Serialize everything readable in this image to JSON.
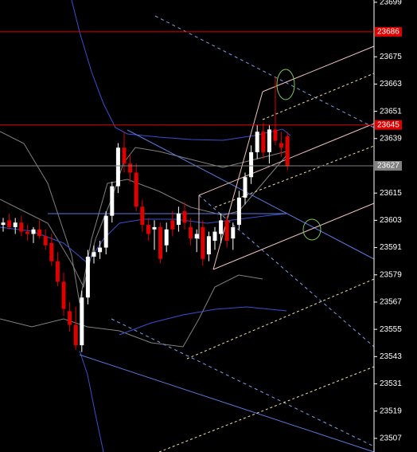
{
  "chart_data": {
    "type": "candlestick",
    "open": [
      23601,
      23603,
      23600,
      23602,
      23598,
      23597,
      23599,
      23596,
      23593,
      23585,
      23576,
      23563,
      23557,
      23548,
      23569,
      23587,
      23589,
      23591,
      23605,
      23618,
      23635,
      23628,
      23624,
      23609,
      23601,
      23599,
      23600,
      23592,
      23603,
      23601,
      23607,
      23600,
      23595,
      23600,
      23588,
      23594,
      23597,
      23603,
      23595,
      23601,
      23613,
      23622,
      23633,
      23642,
      23633,
      23643,
      23637,
      23640
    ],
    "high": [
      23604,
      23606,
      23604,
      23605,
      23601,
      23600,
      23603,
      23599,
      23597,
      23589,
      23580,
      23567,
      23565,
      23572,
      23590,
      23592,
      23594,
      23607,
      23620,
      23637,
      23642,
      23632,
      23628,
      23612,
      23604,
      23603,
      23602,
      23602,
      23607,
      23609,
      23611,
      23604,
      23599,
      23603,
      23598,
      23600,
      23606,
      23605,
      23602,
      23616,
      23624,
      23636,
      23645,
      23646,
      23645,
      23666,
      23642,
      23642
    ],
    "low": [
      23598,
      23599,
      23597,
      23596,
      23594,
      23593,
      23595,
      23590,
      23583,
      23574,
      23561,
      23554,
      23546,
      23545,
      23566,
      23584,
      23586,
      23588,
      23602,
      23615,
      23624,
      23620,
      23607,
      23598,
      23594,
      23590,
      23584,
      23589,
      23596,
      23598,
      23599,
      23592,
      23589,
      23583,
      23585,
      23590,
      23593,
      23591,
      23590,
      23599,
      23610,
      23619,
      23630,
      23630,
      23628,
      23636,
      23631,
      23625
    ],
    "close": [
      23602,
      23600,
      23602,
      23598,
      23597,
      23599,
      23596,
      23592,
      23585,
      23576,
      23564,
      23557,
      23548,
      23569,
      23587,
      23589,
      23591,
      23605,
      23618,
      23635,
      23628,
      23624,
      23609,
      23601,
      23597,
      23600,
      23586,
      23599,
      23599,
      23606,
      23602,
      23595,
      23597,
      23586,
      23596,
      23598,
      23603,
      23594,
      23600,
      23613,
      23622,
      23633,
      23642,
      23633,
      23643,
      23638,
      23635,
      23627
    ],
    "up_color": "#ffffff",
    "down_color": "#e00000",
    "ylim": [
      23501,
      23700
    ],
    "yticks": [
      23699,
      23675,
      23663,
      23651,
      23639,
      23615,
      23603,
      23591,
      23579,
      23567,
      23555,
      23543,
      23531,
      23519,
      23507
    ],
    "price_lines": [
      23686,
      23645,
      23627
    ],
    "price_line_colors": [
      "#e00000",
      "#e00000",
      "#808080"
    ]
  }
}
